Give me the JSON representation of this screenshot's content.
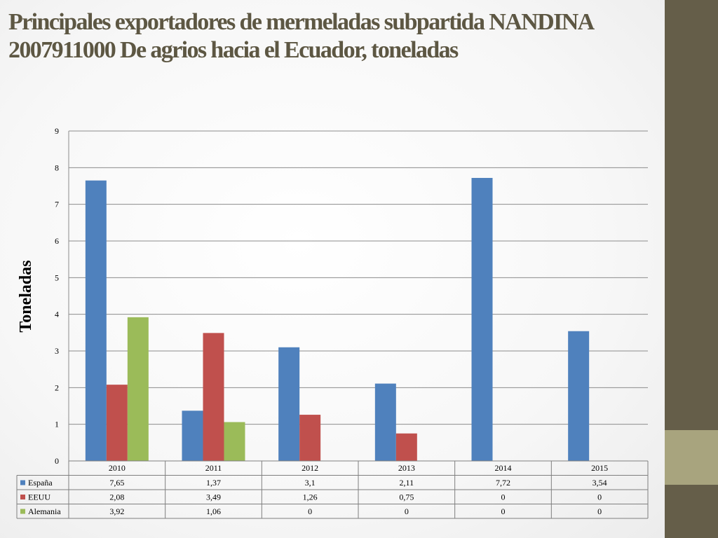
{
  "slide": {
    "title": "Principales exportadores de mermeladas subpartida NANDINA 2007911000 De agrios hacia el Ecuador, toneladas"
  },
  "colors": {
    "side_band": "#655e49",
    "side_accent": "#a8a47e",
    "title": "#5d5743"
  },
  "chart_data": {
    "type": "bar",
    "title": "",
    "xlabel": "",
    "ylabel": "Toneladas",
    "ylim": [
      0,
      9
    ],
    "yticks": [
      0,
      1,
      2,
      3,
      4,
      5,
      6,
      7,
      8,
      9
    ],
    "grid": true,
    "legend": "data-table",
    "categories": [
      "2010",
      "2011",
      "2012",
      "2013",
      "2014",
      "2015"
    ],
    "series": [
      {
        "name": "España",
        "color": "#4f81bd",
        "values": [
          7.65,
          1.37,
          3.1,
          2.11,
          7.72,
          3.54
        ],
        "labels": [
          "7,65",
          "1,37",
          "3,1",
          "2,11",
          "7,72",
          "3,54"
        ]
      },
      {
        "name": "EEUU",
        "color": "#c0504d",
        "values": [
          2.08,
          3.49,
          1.26,
          0.75,
          0,
          0
        ],
        "labels": [
          "2,08",
          "3,49",
          "1,26",
          "0,75",
          "0",
          "0"
        ]
      },
      {
        "name": "Alemania",
        "color": "#9bbb59",
        "values": [
          3.92,
          1.06,
          0,
          0,
          0,
          0
        ],
        "labels": [
          "3,92",
          "1,06",
          "0",
          "0",
          "0",
          "0"
        ]
      }
    ]
  }
}
